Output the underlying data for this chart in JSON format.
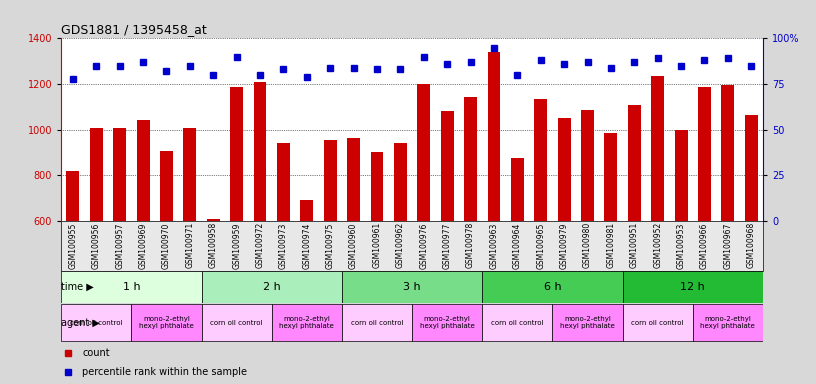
{
  "title": "GDS1881 / 1395458_at",
  "samples": [
    "GSM100955",
    "GSM100956",
    "GSM100957",
    "GSM100969",
    "GSM100970",
    "GSM100971",
    "GSM100958",
    "GSM100959",
    "GSM100972",
    "GSM100973",
    "GSM100974",
    "GSM100975",
    "GSM100960",
    "GSM100961",
    "GSM100962",
    "GSM100976",
    "GSM100977",
    "GSM100978",
    "GSM100963",
    "GSM100964",
    "GSM100965",
    "GSM100979",
    "GSM100980",
    "GSM100981",
    "GSM100951",
    "GSM100952",
    "GSM100953",
    "GSM100966",
    "GSM100967",
    "GSM100968"
  ],
  "counts": [
    820,
    1005,
    1005,
    1040,
    905,
    1005,
    610,
    1185,
    1210,
    940,
    690,
    955,
    965,
    900,
    940,
    1200,
    1080,
    1145,
    1340,
    875,
    1135,
    1050,
    1085,
    985,
    1110,
    1235,
    1000,
    1185,
    1195,
    1065
  ],
  "percentiles": [
    78,
    85,
    85,
    87,
    82,
    85,
    80,
    90,
    80,
    83,
    79,
    84,
    84,
    83,
    83,
    90,
    86,
    87,
    95,
    80,
    88,
    86,
    87,
    84,
    87,
    89,
    85,
    88,
    89,
    85
  ],
  "bar_color": "#cc0000",
  "dot_color": "#0000cc",
  "ylim_left": [
    600,
    1400
  ],
  "ylim_right": [
    0,
    100
  ],
  "yticks_left": [
    600,
    800,
    1000,
    1200,
    1400
  ],
  "yticks_right": [
    0,
    25,
    50,
    75,
    100
  ],
  "time_groups": [
    {
      "label": "1 h",
      "start": 0,
      "end": 6,
      "color": "#ddffdd"
    },
    {
      "label": "2 h",
      "start": 6,
      "end": 12,
      "color": "#aaeebb"
    },
    {
      "label": "3 h",
      "start": 12,
      "end": 18,
      "color": "#77dd88"
    },
    {
      "label": "6 h",
      "start": 18,
      "end": 24,
      "color": "#44cc55"
    },
    {
      "label": "12 h",
      "start": 24,
      "end": 30,
      "color": "#22bb33"
    }
  ],
  "agent_groups": [
    {
      "label": "corn oil control",
      "start": 0,
      "end": 3,
      "color": "#ffccff"
    },
    {
      "label": "mono-2-ethyl\nhexyl phthalate",
      "start": 3,
      "end": 6,
      "color": "#ff88ff"
    },
    {
      "label": "corn oil control",
      "start": 6,
      "end": 9,
      "color": "#ffccff"
    },
    {
      "label": "mono-2-ethyl\nhexyl phthalate",
      "start": 9,
      "end": 12,
      "color": "#ff88ff"
    },
    {
      "label": "corn oil control",
      "start": 12,
      "end": 15,
      "color": "#ffccff"
    },
    {
      "label": "mono-2-ethyl\nhexyl phthalate",
      "start": 15,
      "end": 18,
      "color": "#ff88ff"
    },
    {
      "label": "corn oil control",
      "start": 18,
      "end": 21,
      "color": "#ffccff"
    },
    {
      "label": "mono-2-ethyl\nhexyl phthalate",
      "start": 21,
      "end": 24,
      "color": "#ff88ff"
    },
    {
      "label": "corn oil control",
      "start": 24,
      "end": 27,
      "color": "#ffccff"
    },
    {
      "label": "mono-2-ethyl\nhexyl phthalate",
      "start": 27,
      "end": 30,
      "color": "#ff88ff"
    }
  ],
  "bg_color": "#d8d8d8",
  "plot_bg": "#ffffff",
  "legend_count_color": "#cc0000",
  "legend_pct_color": "#0000cc",
  "tick_bg": "#e8e8e8"
}
